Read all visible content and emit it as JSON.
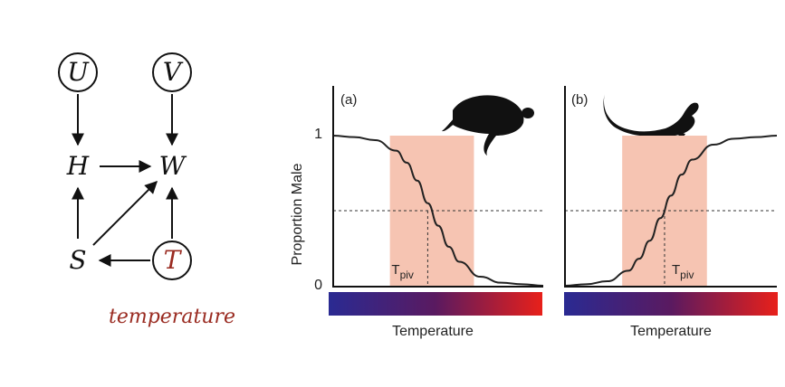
{
  "dag": {
    "nodes": [
      {
        "id": "U",
        "label": "U",
        "circled": true
      },
      {
        "id": "V",
        "label": "V",
        "circled": true
      },
      {
        "id": "H",
        "label": "H",
        "circled": false
      },
      {
        "id": "W",
        "label": "W",
        "circled": false
      },
      {
        "id": "S",
        "label": "S",
        "circled": false
      },
      {
        "id": "T",
        "label": "T",
        "circled": true,
        "color": "#9a2b21"
      }
    ],
    "edges": [
      [
        "U",
        "H"
      ],
      [
        "V",
        "W"
      ],
      [
        "H",
        "W"
      ],
      [
        "S",
        "H"
      ],
      [
        "S",
        "W"
      ],
      [
        "T",
        "W"
      ],
      [
        "T",
        "S"
      ]
    ],
    "caption": "temperature",
    "caption_color": "#9a2b21"
  },
  "colors": {
    "band": "#f6c4b2",
    "curve": "#222222",
    "gradient_cold": "#2a2a92",
    "gradient_mid": "#5a1a60",
    "gradient_hot": "#e8201a"
  },
  "icons": [
    "turtle-silhouette-icon",
    "lizard-silhouette-icon"
  ],
  "chart_data": [
    {
      "type": "line",
      "panel": "(a)",
      "ylabel": "Proportion Male",
      "xlabel": "Temperature",
      "ytick_labels": [
        "1",
        "0"
      ],
      "ylim": [
        0,
        1
      ],
      "pivot_label_main": "T",
      "pivot_label_sub": "piv",
      "trend": "decreasing",
      "series": [
        {
          "x": [
            0,
            0.1,
            0.2,
            0.3,
            0.35,
            0.4,
            0.45,
            0.5,
            0.55,
            0.6,
            0.7,
            0.8,
            0.9,
            1.0
          ],
          "y": [
            1.0,
            0.99,
            0.97,
            0.9,
            0.82,
            0.7,
            0.55,
            0.4,
            0.26,
            0.16,
            0.06,
            0.02,
            0.01,
            0.0
          ]
        }
      ],
      "pivot": {
        "x": 0.45,
        "y": 0.5
      },
      "band": [
        0.27,
        0.67
      ]
    },
    {
      "type": "line",
      "panel": "(b)",
      "xlabel": "Temperature",
      "ylim": [
        0,
        1
      ],
      "pivot_label_main": "T",
      "pivot_label_sub": "piv",
      "trend": "increasing",
      "series": [
        {
          "x": [
            0,
            0.1,
            0.2,
            0.3,
            0.35,
            0.4,
            0.45,
            0.5,
            0.55,
            0.6,
            0.7,
            0.8,
            0.9,
            1.0
          ],
          "y": [
            0.0,
            0.01,
            0.03,
            0.1,
            0.18,
            0.3,
            0.45,
            0.6,
            0.74,
            0.84,
            0.94,
            0.98,
            0.99,
            1.0
          ]
        }
      ],
      "pivot": {
        "x": 0.47,
        "y": 0.5
      },
      "band": [
        0.27,
        0.67
      ]
    }
  ]
}
